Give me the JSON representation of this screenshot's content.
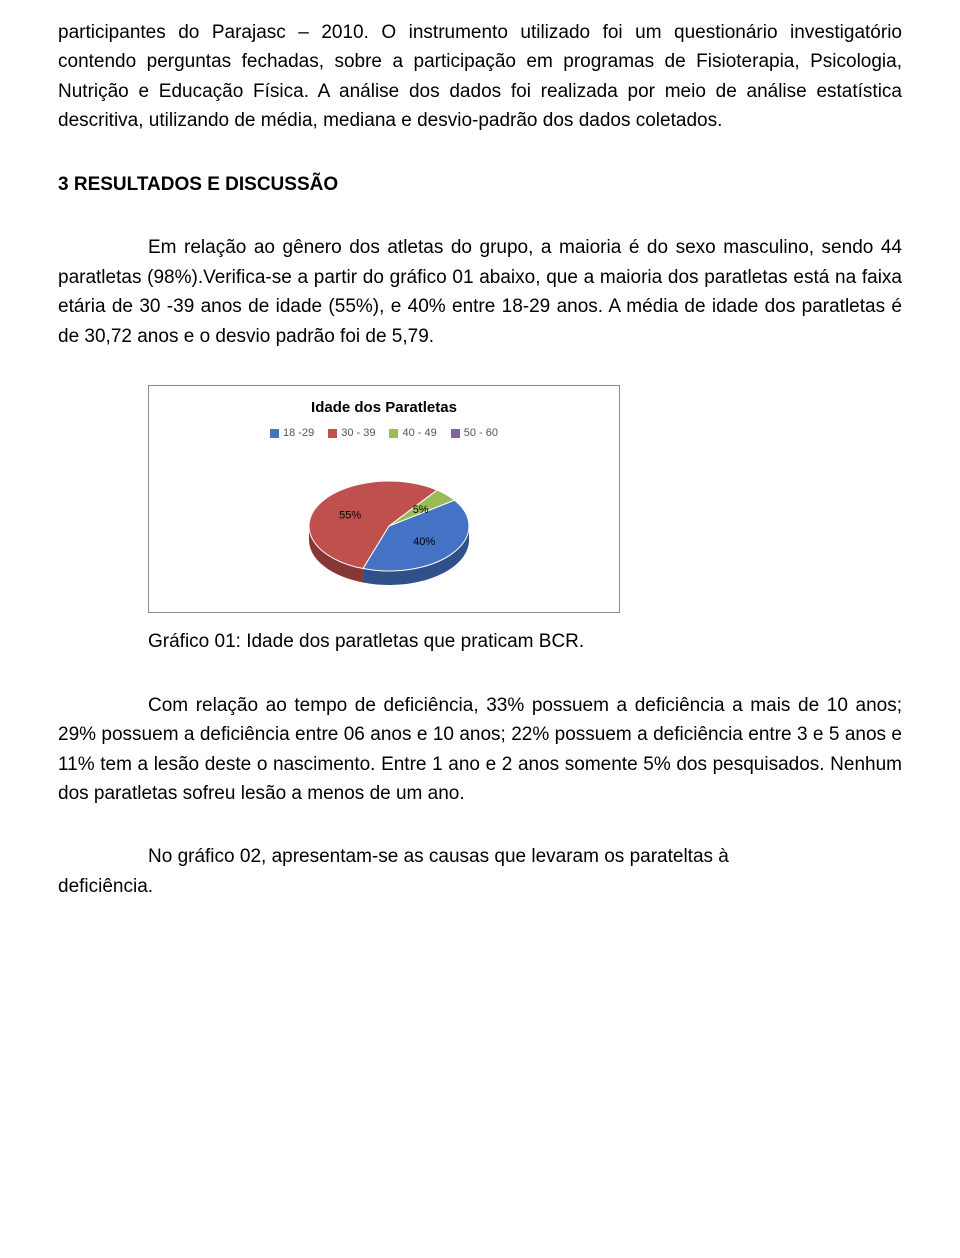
{
  "para1": "participantes do Parajasc – 2010. O instrumento utilizado foi um questionário investigatório contendo perguntas fechadas, sobre a participação em programas de Fisioterapia, Psicologia, Nutrição e Educação Física. A análise dos dados foi realizada por meio de análise estatística descritiva, utilizando de média, mediana e desvio-padrão dos dados coletados.",
  "heading": "3 RESULTADOS E DISCUSSÃO",
  "para2": "Em relação ao gênero dos atletas do grupo, a maioria é do sexo masculino, sendo 44 paratletas (98%).Verifica-se a partir do gráfico 01 abaixo, que a maioria dos paratletas está na faixa etária de 30 -39 anos de idade (55%), e 40% entre 18-29 anos. A média de idade dos paratletas é de 30,72 anos e o desvio padrão foi de 5,79.",
  "chart": {
    "type": "pie",
    "title": "Idade dos Paratletas",
    "legend": [
      {
        "label": "18 -29",
        "color": "#4472c4"
      },
      {
        "label": "30 - 39",
        "color": "#c0504d"
      },
      {
        "label": "40 - 49",
        "color": "#9bbb59"
      },
      {
        "label": "50 - 60",
        "color": "#8064a2"
      }
    ],
    "slices": [
      {
        "label": "40%",
        "value": 40,
        "color": "#4472c4"
      },
      {
        "label": "55%",
        "value": 55,
        "color": "#c0504d"
      },
      {
        "label": "5%",
        "value": 5,
        "color": "#9bbb59"
      }
    ],
    "start_angle_deg": -35,
    "background": "#ffffff",
    "border": "#8a8a8a",
    "title_fontsize": 15,
    "legend_fontsize": 11,
    "slice_label_color": "#000000"
  },
  "caption": "Gráfico 01: Idade dos paratletas que praticam BCR.",
  "para3": "Com relação ao tempo de deficiência, 33% possuem a deficiência a mais de 10 anos; 29% possuem a deficiência entre 06 anos e 10 anos;  22% possuem a deficiência entre 3 e 5 anos e 11% tem a lesão deste o nascimento. Entre 1 ano e 2 anos somente 5% dos pesquisados. Nenhum dos paratletas sofreu lesão a menos de um ano.",
  "para4_pre": "deficiência.",
  "para4": "No gráfico 02, apresentam-se as causas que levaram os parateltas à"
}
